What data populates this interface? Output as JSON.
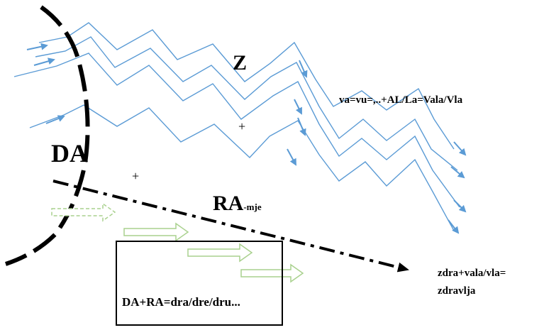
{
  "labels": {
    "z": "Z",
    "va_formula": "va=vu=,..+AL/La=Vala/Vla",
    "plus_upper": "+",
    "plus_lower": "+",
    "da": "DA",
    "ra": "RA",
    "ra_sub": "-mje",
    "box_formula": "DA+RA=dra/dre/dru...",
    "zdra_line1": "zdra+vala/vla=",
    "zdra_line2": "zdravlja"
  },
  "colors": {
    "wave": "#5b9bd5",
    "green_arrow": "#a9d18e",
    "black": "#000000"
  }
}
